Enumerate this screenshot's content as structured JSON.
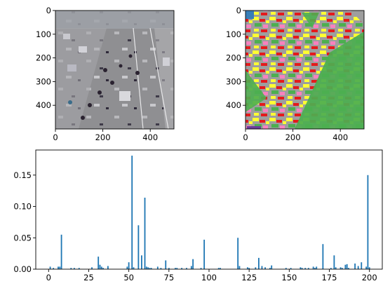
{
  "chart_data": [
    {
      "type": "image",
      "content": "grayscale photo of highway traffic with a motorcycle procession",
      "xlim": [
        0,
        500
      ],
      "ylim": [
        500,
        0
      ],
      "xticks": [
        0,
        200,
        400
      ],
      "yticks": [
        0,
        100,
        200,
        300,
        400
      ],
      "grid": false
    },
    {
      "type": "heatmap",
      "content": "superpixel segmentation map of the photo, multi-colored regions",
      "palette": [
        "#4caf50",
        "#9e9e9e",
        "#ffff33",
        "#e41a1c",
        "#f781bf",
        "#377eb8"
      ],
      "xlim": [
        0,
        500
      ],
      "ylim": [
        500,
        0
      ],
      "xticks": [
        0,
        200,
        400
      ],
      "yticks": [
        0,
        100,
        200,
        300,
        400
      ],
      "grid": false
    },
    {
      "type": "bar",
      "color": "#1f77b4",
      "xlim": [
        -8,
        208
      ],
      "ylim": [
        0,
        0.19
      ],
      "xticks": [
        0,
        25,
        50,
        75,
        100,
        125,
        150,
        175,
        200
      ],
      "yticks": [
        0.0,
        0.05,
        0.1,
        0.15
      ],
      "ytick_labels": [
        "0.00",
        "0.05",
        "0.10",
        "0.15"
      ],
      "grid": false,
      "x": [
        1,
        3,
        6,
        7,
        8,
        14,
        16,
        19,
        27,
        31,
        32,
        33,
        34,
        37,
        49,
        50,
        52,
        53,
        56,
        58,
        60,
        61,
        62,
        63,
        64,
        68,
        70,
        73,
        75,
        79,
        80,
        83,
        86,
        89,
        90,
        95,
        97,
        106,
        107,
        118,
        119,
        124,
        125,
        129,
        131,
        133,
        135,
        138,
        139,
        148,
        151,
        157,
        158,
        160,
        162,
        165,
        166,
        167,
        171,
        176,
        178,
        179,
        182,
        183,
        185,
        186,
        187,
        191,
        193,
        195,
        198,
        199,
        200
      ],
      "values": [
        0.004,
        0.002,
        0.004,
        0.004,
        0.055,
        0.002,
        0.002,
        0.002,
        0.003,
        0.02,
        0.007,
        0.004,
        0.002,
        0.005,
        0.004,
        0.011,
        0.181,
        0.003,
        0.07,
        0.022,
        0.114,
        0.004,
        0.003,
        0.002,
        0.002,
        0.004,
        0.002,
        0.014,
        0.002,
        0.002,
        0.002,
        0.002,
        0.002,
        0.005,
        0.016,
        0.002,
        0.047,
        0.002,
        0.002,
        0.05,
        0.005,
        0.003,
        0.002,
        0.003,
        0.018,
        0.005,
        0.003,
        0.002,
        0.006,
        0.002,
        0.002,
        0.003,
        0.002,
        0.002,
        0.002,
        0.004,
        0.002,
        0.004,
        0.04,
        0.002,
        0.022,
        0.003,
        0.003,
        0.002,
        0.007,
        0.008,
        0.002,
        0.009,
        0.005,
        0.011,
        0.004,
        0.15,
        0.003
      ]
    }
  ]
}
